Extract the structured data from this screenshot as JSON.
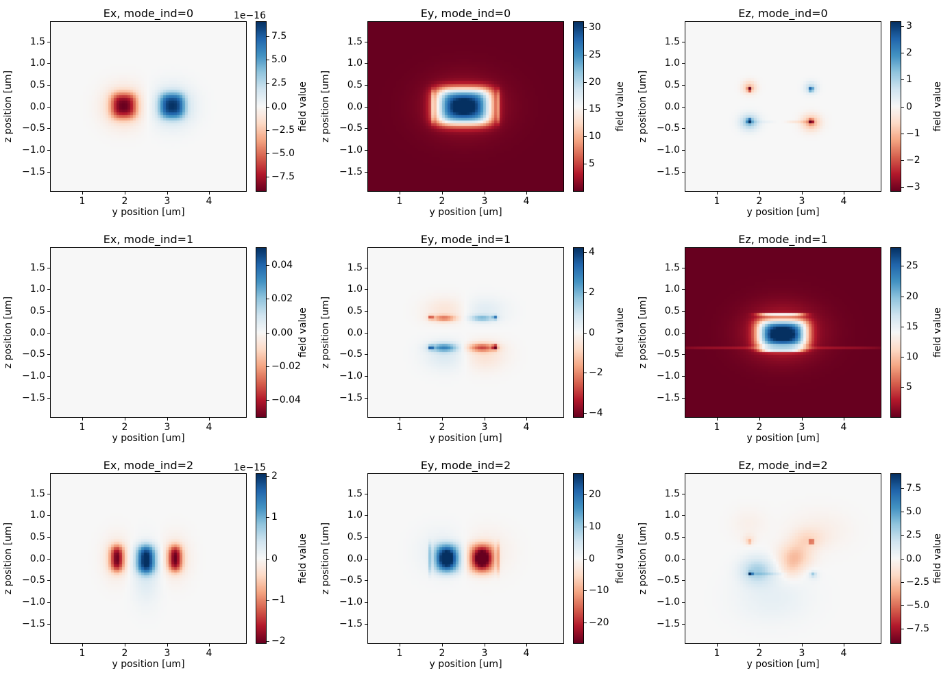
{
  "figure": {
    "bg": "#ffffff",
    "text_color": "#000000",
    "spine_color": "#000000"
  },
  "colormap_rdbu": [
    "#67001f",
    "#b2182b",
    "#d6604d",
    "#f4a582",
    "#fddbc7",
    "#f7f7f7",
    "#d1e5f0",
    "#92c5de",
    "#4393c3",
    "#2166ac",
    "#053061"
  ],
  "axes_shared": {
    "xlabel": "y position [um]",
    "ylabel": "z position [um]",
    "cbar_label": "field value",
    "x_range": [
      0.25,
      4.87
    ],
    "z_range": [
      -1.95,
      1.95
    ],
    "cell_step_um": 0.065,
    "x_ticks": [
      {
        "v": 1,
        "label": "1"
      },
      {
        "v": 2,
        "label": "2"
      },
      {
        "v": 3,
        "label": "3"
      },
      {
        "v": 4,
        "label": "4"
      }
    ],
    "z_ticks": [
      {
        "v": 1.5,
        "label": "1.5"
      },
      {
        "v": 1.0,
        "label": "1.0"
      },
      {
        "v": 0.5,
        "label": "0.5"
      },
      {
        "v": 0.0,
        "label": "0.0"
      },
      {
        "v": -0.5,
        "label": "−0.5"
      },
      {
        "v": -1.0,
        "label": "−1.0"
      },
      {
        "v": -1.5,
        "label": "−1.5"
      }
    ]
  },
  "chart_data": [
    {
      "type": "heatmap",
      "title": "Ex, mode_ind=0",
      "field": "Ex",
      "mode_ind": 0,
      "row": 0,
      "col": 0,
      "offset_text": "1e−16",
      "vmin": -9.05,
      "vmax": 9.05,
      "cbar_ticks": [
        {
          "v": 7.5,
          "label": "7.5"
        },
        {
          "v": 5.0,
          "label": "5.0"
        },
        {
          "v": 2.5,
          "label": "2.5"
        },
        {
          "v": 0.0,
          "label": "0.0"
        },
        {
          "v": -2.5,
          "label": "−2.5"
        },
        {
          "v": -5.0,
          "label": "−5.0"
        },
        {
          "v": -7.5,
          "label": "−7.5"
        }
      ],
      "blobs": [
        {
          "y": 1.98,
          "z": 0.02,
          "sy": 0.3,
          "sz": 0.29,
          "py": 3,
          "pz": 3,
          "amp": -6.3
        },
        {
          "y": 1.98,
          "z": 0.0,
          "sy": 0.46,
          "sz": 0.44,
          "amp": -2.7
        },
        {
          "y": 3.13,
          "z": 0.02,
          "sy": 0.3,
          "sz": 0.29,
          "py": 3,
          "pz": 3,
          "amp": 6.3
        },
        {
          "y": 3.13,
          "z": 0.0,
          "sy": 0.46,
          "sz": 0.44,
          "amp": 2.7
        }
      ]
    },
    {
      "type": "heatmap",
      "title": "Ey, mode_ind=0",
      "field": "Ey",
      "mode_ind": 0,
      "row": 0,
      "col": 1,
      "offset_text": "",
      "vmin": 0,
      "vmax": 31,
      "cbar_ticks": [
        {
          "v": 30,
          "label": "30"
        },
        {
          "v": 25,
          "label": "25"
        },
        {
          "v": 20,
          "label": "20"
        },
        {
          "v": 15,
          "label": "15"
        },
        {
          "v": 10,
          "label": "10"
        },
        {
          "v": 5,
          "label": "5"
        }
      ],
      "blobs": [
        {
          "y": 2.52,
          "z": 0.0,
          "sy": 0.68,
          "sz": 0.43,
          "py": 4,
          "pz": 4,
          "amp": 25
        },
        {
          "y": 2.52,
          "z": 0.0,
          "sy": 0.33,
          "sz": 0.21,
          "amp": 7
        },
        {
          "y": 2.52,
          "z": 0.0,
          "sy": 0.9,
          "sz": 0.65,
          "amp": 3
        },
        {
          "y": 1.79,
          "z": 0.0,
          "sy": 0.022,
          "sz": 0.4,
          "pz": 6,
          "amp": 6
        },
        {
          "y": 3.35,
          "z": 0.0,
          "sy": 0.022,
          "sz": 0.4,
          "pz": 6,
          "amp": 6
        }
      ]
    },
    {
      "type": "heatmap",
      "title": "Ez, mode_ind=0",
      "field": "Ez",
      "mode_ind": 0,
      "row": 0,
      "col": 2,
      "offset_text": "",
      "vmin": -3.15,
      "vmax": 3.15,
      "cbar_ticks": [
        {
          "v": 3,
          "label": "3"
        },
        {
          "v": 2,
          "label": "2"
        },
        {
          "v": 1,
          "label": "1"
        },
        {
          "v": 0,
          "label": "0"
        },
        {
          "v": -1,
          "label": "−1"
        },
        {
          "v": -2,
          "label": "−2"
        },
        {
          "v": -3,
          "label": "−3"
        }
      ],
      "blobs": [
        {
          "y": 1.77,
          "z": 0.4,
          "sy": 0.045,
          "sz": 0.045,
          "amp": -3.0
        },
        {
          "y": 1.77,
          "z": 0.44,
          "sy": 0.16,
          "sz": 0.14,
          "amp": -1.0
        },
        {
          "y": 3.23,
          "z": 0.4,
          "sy": 0.045,
          "sz": 0.045,
          "amp": 2.6
        },
        {
          "y": 3.23,
          "z": 0.43,
          "sy": 0.15,
          "sz": 0.13,
          "amp": 0.9
        },
        {
          "y": 1.77,
          "z": -0.34,
          "sy": 0.05,
          "sz": 0.05,
          "amp": 3.15
        },
        {
          "y": 1.77,
          "z": -0.36,
          "sy": 0.22,
          "sz": 0.18,
          "amp": 1.3
        },
        {
          "y": 3.23,
          "z": -0.35,
          "sy": 0.05,
          "sz": 0.05,
          "amp": -3.0
        },
        {
          "y": 3.23,
          "z": -0.37,
          "sy": 0.22,
          "sz": 0.18,
          "amp": -1.2
        },
        {
          "y": 2.05,
          "z": -0.345,
          "sy": 0.3,
          "sz": 0.012,
          "py": 4,
          "amp": 0.5
        },
        {
          "y": 2.95,
          "z": -0.35,
          "sy": 0.3,
          "sz": 0.012,
          "py": 4,
          "amp": -0.5
        }
      ]
    },
    {
      "type": "heatmap",
      "title": "Ex, mode_ind=1",
      "field": "Ex",
      "mode_ind": 1,
      "row": 1,
      "col": 0,
      "offset_text": "",
      "vmin": -0.05,
      "vmax": 0.05,
      "cbar_ticks": [
        {
          "v": 0.04,
          "label": "0.04"
        },
        {
          "v": 0.02,
          "label": "0.02"
        },
        {
          "v": 0.0,
          "label": "0.00"
        },
        {
          "v": -0.02,
          "label": "−0.02"
        },
        {
          "v": -0.04,
          "label": "−0.04"
        }
      ],
      "blobs": []
    },
    {
      "type": "heatmap",
      "title": "Ey, mode_ind=1",
      "field": "Ey",
      "mode_ind": 1,
      "row": 1,
      "col": 1,
      "offset_text": "",
      "vmin": -4.2,
      "vmax": 4.2,
      "cbar_ticks": [
        {
          "v": 4,
          "label": "4"
        },
        {
          "v": 2,
          "label": "2"
        },
        {
          "v": 0,
          "label": "0"
        },
        {
          "v": -2,
          "label": "−2"
        },
        {
          "v": -4,
          "label": "−4"
        }
      ],
      "blobs": [
        {
          "y": 2.05,
          "z": 0.33,
          "sy": 0.28,
          "sz": 0.075,
          "amp": -2.0
        },
        {
          "y": 1.74,
          "z": 0.35,
          "sy": 0.05,
          "sz": 0.05,
          "amp": -2.6
        },
        {
          "y": 2.1,
          "z": 0.5,
          "sy": 0.5,
          "sz": 0.3,
          "amp": -0.55
        },
        {
          "y": 2.95,
          "z": 0.33,
          "sy": 0.28,
          "sz": 0.075,
          "amp": 1.7
        },
        {
          "y": 3.26,
          "z": 0.35,
          "sy": 0.05,
          "sz": 0.05,
          "amp": 2.6
        },
        {
          "y": 3.0,
          "z": 0.5,
          "sy": 0.5,
          "sz": 0.3,
          "amp": 0.5
        },
        {
          "y": 2.05,
          "z": -0.35,
          "sy": 0.32,
          "sz": 0.1,
          "amp": 2.4
        },
        {
          "y": 1.74,
          "z": -0.35,
          "sy": 0.05,
          "sz": 0.05,
          "amp": 3.3
        },
        {
          "y": 2.1,
          "z": -0.52,
          "sy": 0.5,
          "sz": 0.35,
          "amp": 0.6
        },
        {
          "y": 2.95,
          "z": -0.35,
          "sy": 0.32,
          "sz": 0.1,
          "amp": -2.4
        },
        {
          "y": 3.26,
          "z": -0.34,
          "sy": 0.055,
          "sz": 0.055,
          "amp": -4.2
        },
        {
          "y": 3.0,
          "z": -0.52,
          "sy": 0.5,
          "sz": 0.35,
          "amp": -0.6
        }
      ]
    },
    {
      "type": "heatmap",
      "title": "Ez, mode_ind=1",
      "field": "Ez",
      "mode_ind": 1,
      "row": 1,
      "col": 2,
      "offset_text": "",
      "vmin": 0,
      "vmax": 28,
      "cbar_ticks": [
        {
          "v": 25,
          "label": "25"
        },
        {
          "v": 20,
          "label": "20"
        },
        {
          "v": 15,
          "label": "15"
        },
        {
          "v": 10,
          "label": "10"
        },
        {
          "v": 5,
          "label": "5"
        }
      ],
      "blobs": [
        {
          "y": 2.55,
          "z": -0.04,
          "sy": 0.6,
          "sz": 0.34,
          "py": 4,
          "pz": 4,
          "amp": 21
        },
        {
          "y": 2.55,
          "z": -0.04,
          "sy": 0.34,
          "sz": 0.17,
          "amp": 8
        },
        {
          "y": 2.55,
          "z": 0.0,
          "sy": 0.85,
          "sz": 0.6,
          "amp": 4
        },
        {
          "y": 2.52,
          "z": 0.41,
          "sy": 0.55,
          "sz": 0.035,
          "py": 4,
          "amp": 12
        },
        {
          "y": 2.52,
          "z": -0.43,
          "sy": 0.5,
          "sz": 0.03,
          "py": 4,
          "amp": 10
        },
        {
          "y": 2.52,
          "z": -0.35,
          "sy": 0.55,
          "sz": 0.015,
          "py": 4,
          "amp": 5
        },
        {
          "y": 2.5,
          "z": -0.35,
          "sy": 2.4,
          "sz": 0.012,
          "py": 8,
          "amp": 2.5
        }
      ]
    },
    {
      "type": "heatmap",
      "title": "Ex, mode_ind=2",
      "field": "Ex",
      "mode_ind": 2,
      "row": 2,
      "col": 0,
      "offset_text": "1e−15",
      "vmin": -2.05,
      "vmax": 2.05,
      "cbar_ticks": [
        {
          "v": 2,
          "label": "2"
        },
        {
          "v": 1,
          "label": "1"
        },
        {
          "v": 0,
          "label": "0"
        },
        {
          "v": -1,
          "label": "−1"
        },
        {
          "v": -2,
          "label": "−2"
        }
      ],
      "blobs": [
        {
          "y": 1.82,
          "z": 0.0,
          "sy": 0.16,
          "sz": 0.3,
          "pz": 3,
          "amp": -1.75
        },
        {
          "y": 1.82,
          "z": 0.0,
          "sy": 0.33,
          "sz": 0.5,
          "amp": -0.3
        },
        {
          "y": 2.51,
          "z": -0.02,
          "sy": 0.22,
          "sz": 0.33,
          "pz": 3,
          "amp": 2.0
        },
        {
          "y": 2.51,
          "z": -0.35,
          "sy": 0.32,
          "sz": 0.65,
          "amp": 0.3
        },
        {
          "y": 3.2,
          "z": 0.0,
          "sy": 0.16,
          "sz": 0.3,
          "pz": 3,
          "amp": -1.75
        },
        {
          "y": 3.2,
          "z": 0.0,
          "sy": 0.33,
          "sz": 0.5,
          "amp": -0.3
        }
      ]
    },
    {
      "type": "heatmap",
      "title": "Ey, mode_ind=2",
      "field": "Ey",
      "mode_ind": 2,
      "row": 2,
      "col": 1,
      "offset_text": "",
      "vmin": -26.5,
      "vmax": 26.5,
      "cbar_ticks": [
        {
          "v": 20,
          "label": "20"
        },
        {
          "v": 10,
          "label": "10"
        },
        {
          "v": 0,
          "label": "0"
        },
        {
          "v": -10,
          "label": "−10"
        },
        {
          "v": -20,
          "label": "−20"
        }
      ],
      "blobs": [
        {
          "y": 2.12,
          "z": 0.0,
          "sy": 0.21,
          "sz": 0.25,
          "amp": 24
        },
        {
          "y": 2.12,
          "z": 0.0,
          "sy": 0.34,
          "sz": 0.36,
          "py": 4,
          "pz": 4,
          "amp": 9
        },
        {
          "y": 1.71,
          "z": 0.0,
          "sy": 0.022,
          "sz": 0.37,
          "pz": 4,
          "amp": 7
        },
        {
          "y": 2.0,
          "z": 0.15,
          "sy": 0.55,
          "sz": 0.5,
          "amp": 2.5
        },
        {
          "y": 2.95,
          "z": 0.0,
          "sy": 0.21,
          "sz": 0.25,
          "amp": -24
        },
        {
          "y": 2.95,
          "z": 0.0,
          "sy": 0.34,
          "sz": 0.36,
          "py": 4,
          "pz": 4,
          "amp": -9
        },
        {
          "y": 3.33,
          "z": 0.0,
          "sy": 0.022,
          "sz": 0.37,
          "pz": 4,
          "amp": -7
        },
        {
          "y": 3.05,
          "z": 0.15,
          "sy": 0.55,
          "sz": 0.5,
          "amp": -2.5
        }
      ]
    },
    {
      "type": "heatmap",
      "title": "Ez, mode_ind=2",
      "field": "Ez",
      "mode_ind": 2,
      "row": 2,
      "col": 2,
      "offset_text": "",
      "vmin": -9.0,
      "vmax": 9.0,
      "cbar_ticks": [
        {
          "v": 7.5,
          "label": "7.5"
        },
        {
          "v": 5.0,
          "label": "5.0"
        },
        {
          "v": 2.5,
          "label": "2.5"
        },
        {
          "v": 0.0,
          "label": "0.0"
        },
        {
          "v": -2.5,
          "label": "−2.5"
        },
        {
          "v": -5.0,
          "label": "−5.0"
        },
        {
          "v": -7.5,
          "label": "−7.5"
        }
      ],
      "blobs": [
        {
          "y": 1.76,
          "z": 0.39,
          "sy": 0.04,
          "sz": 0.04,
          "amp": -4.0
        },
        {
          "y": 1.76,
          "z": 0.43,
          "sy": 0.14,
          "sz": 0.12,
          "amp": -1.2
        },
        {
          "y": 3.24,
          "z": 0.39,
          "sy": 0.045,
          "sz": 0.045,
          "amp": -8.0
        },
        {
          "y": 3.15,
          "z": 0.45,
          "sy": 0.35,
          "sz": 0.22,
          "amp": -1.4
        },
        {
          "y": 2.7,
          "z": 0.39,
          "sy": 0.55,
          "sz": 0.015,
          "py": 4,
          "amp": -1.8
        },
        {
          "y": 2.85,
          "z": 0.05,
          "sy": 0.38,
          "sz": 0.3,
          "amp": -2.6
        },
        {
          "y": 2.75,
          "z": -0.25,
          "sy": 0.25,
          "sz": 0.25,
          "amp": -1.2
        },
        {
          "y": 1.8,
          "z": -0.35,
          "sy": 0.04,
          "sz": 0.04,
          "amp": 9.0
        },
        {
          "y": 1.95,
          "z": -0.28,
          "sy": 0.38,
          "sz": 0.3,
          "amp": 3.0
        },
        {
          "y": 2.15,
          "z": -0.37,
          "sy": 0.45,
          "sz": 0.015,
          "py": 4,
          "amp": 1.8
        },
        {
          "y": 3.28,
          "z": -0.37,
          "sy": 0.06,
          "sz": 0.05,
          "amp": 2.6
        },
        {
          "y": 3.28,
          "z": -0.38,
          "sy": 0.14,
          "sz": 0.12,
          "amp": 1.0
        },
        {
          "y": 2.3,
          "z": -0.9,
          "sy": 0.85,
          "sz": 0.55,
          "amp": 0.8
        },
        {
          "y": 3.4,
          "z": 0.65,
          "sy": 0.7,
          "sz": 0.45,
          "amp": -0.6
        },
        {
          "y": 1.75,
          "z": 0.8,
          "sy": 0.4,
          "sz": 0.35,
          "amp": -0.5
        }
      ]
    }
  ]
}
